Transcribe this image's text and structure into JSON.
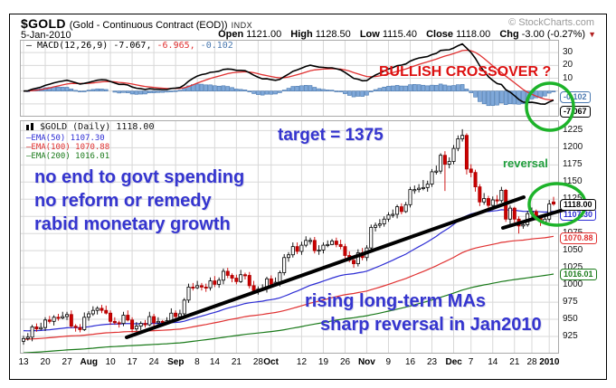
{
  "header": {
    "symbol": "$GOLD",
    "description": "(Gold - Continuous Contract (EOD))",
    "exchange": "INDX",
    "credit": "© StockCharts.com",
    "date": "5-Jan-2010",
    "ohlc": [
      {
        "label": "Open",
        "value": "1121.00"
      },
      {
        "label": "High",
        "value": "1128.50"
      },
      {
        "label": "Low",
        "value": "1115.40"
      },
      {
        "label": "Close",
        "value": "1118.00"
      },
      {
        "label": "Chg",
        "value": "-3.00 (-0.27%)"
      }
    ],
    "chg_down_icon": "▼"
  },
  "macd_panel": {
    "legend_macd": "— MACD(12,26,9) -7.067,",
    "legend_signal": " -6.965,",
    "legend_hist": " -0.102"
  },
  "price_panel": {
    "legend_title": "$GOLD (Daily) 1118.00"
  },
  "annotations": {
    "bullish_crossover": "BULLISH CROSSOVER ?",
    "target": "target = 1375",
    "commentary": [
      "no end to govt spending",
      "no reform or remedy",
      "rabid monetary growth"
    ],
    "reversal": "reversal",
    "rising_mas": "rising long-term MAs",
    "sharp_reversal": "sharp reversal in Jan2010"
  },
  "colors": {
    "candle_up": "#ffffff",
    "candle_up_line": "#000000",
    "candle_down": "#cc0000",
    "candle_down_line": "#aa0000",
    "ema50": "#2d2dd4",
    "ema100": "#e03131",
    "ema200": "#1a7a1a",
    "macd_line": "#000000",
    "macd_signal": "#e03131",
    "hist_fill": "#7fa8d9",
    "hist_line": "#4a79b0",
    "grid": "#d8d8d8",
    "panel_border": "#aaaaaa",
    "annotation_blue": "#3535cf",
    "annotation_red": "#dd1111",
    "annotation_green": "#1f9e3c",
    "circle_green": "#1db32a",
    "trendline": "#000000"
  },
  "chart_data": {
    "type": "candlestick+macd",
    "title": "$GOLD Gold - Continuous Contract (EOD) INDX, daily, 13-Jul-2009 to 5-Jan-2010",
    "x_ticks": [
      [
        0,
        "13",
        0
      ],
      [
        5,
        "20",
        0
      ],
      [
        10,
        "27",
        0
      ],
      [
        15,
        "Aug",
        1
      ],
      [
        20,
        "10",
        0
      ],
      [
        25,
        "17",
        0
      ],
      [
        30,
        "24",
        0
      ],
      [
        35,
        "Sep",
        1
      ],
      [
        40,
        "8",
        0
      ],
      [
        44,
        "14",
        0
      ],
      [
        49,
        "21",
        0
      ],
      [
        54,
        "28",
        0
      ],
      [
        57,
        "Oct",
        1
      ],
      [
        64,
        "12",
        0
      ],
      [
        69,
        "19",
        0
      ],
      [
        74,
        "26",
        0
      ],
      [
        79,
        "Nov",
        1
      ],
      [
        84,
        "9",
        0
      ],
      [
        89,
        "16",
        0
      ],
      [
        94,
        "23",
        0
      ],
      [
        99,
        "Dec",
        1
      ],
      [
        103,
        "7",
        0
      ],
      [
        108,
        "14",
        0
      ],
      [
        113,
        "21",
        0
      ],
      [
        117,
        "28",
        0
      ],
      [
        121,
        "2010",
        1
      ]
    ],
    "price": {
      "ylim": [
        900,
        1240
      ],
      "y_ticks": [
        1225,
        1200,
        1175,
        1150,
        1125,
        1100,
        1075,
        1050,
        1025,
        1000,
        975,
        950,
        925
      ],
      "grid": true,
      "ohlc": [
        [
          918,
          926,
          913,
          922
        ],
        [
          922,
          930,
          919,
          924
        ],
        [
          924,
          942,
          918,
          939
        ],
        [
          939,
          944,
          932,
          936
        ],
        [
          936,
          945,
          934,
          938
        ],
        [
          938,
          953,
          933,
          949
        ],
        [
          949,
          955,
          944,
          947
        ],
        [
          947,
          956,
          941,
          953
        ],
        [
          953,
          958,
          948,
          952
        ],
        [
          952,
          961,
          950,
          954
        ],
        [
          954,
          961,
          949,
          957
        ],
        [
          957,
          963,
          937,
          940
        ],
        [
          940,
          943,
          932,
          938
        ],
        [
          938,
          943,
          931,
          935
        ],
        [
          935,
          960,
          933,
          953
        ],
        [
          953,
          962,
          948,
          958
        ],
        [
          958,
          969,
          955,
          963
        ],
        [
          963,
          969,
          957,
          966
        ],
        [
          966,
          971,
          959,
          963
        ],
        [
          963,
          970,
          957,
          959
        ],
        [
          959,
          963,
          942,
          947
        ],
        [
          947,
          953,
          942,
          945
        ],
        [
          945,
          948,
          938,
          944
        ],
        [
          944,
          961,
          940,
          956
        ],
        [
          956,
          963,
          947,
          949
        ],
        [
          949,
          953,
          931,
          936
        ],
        [
          936,
          946,
          933,
          940
        ],
        [
          940,
          947,
          934,
          944
        ],
        [
          944,
          949,
          938,
          942
        ],
        [
          942,
          961,
          940,
          954
        ],
        [
          954,
          958,
          940,
          945
        ],
        [
          945,
          953,
          942,
          947
        ],
        [
          947,
          949,
          940,
          946
        ],
        [
          946,
          953,
          944,
          948
        ],
        [
          948,
          966,
          946,
          959
        ],
        [
          959,
          963,
          949,
          954
        ],
        [
          954,
          964,
          951,
          958
        ],
        [
          958,
          981,
          952,
          978
        ],
        [
          978,
          1002,
          974,
          997
        ],
        [
          997,
          1003,
          992,
          996
        ],
        [
          996,
          1006,
          994,
          999
        ],
        [
          999,
          1003,
          992,
          997
        ],
        [
          997,
          1002,
          990,
          996
        ],
        [
          996,
          1011,
          992,
          1006
        ],
        [
          1006,
          1013,
          997,
          1001
        ],
        [
          1001,
          1011,
          996,
          1007
        ],
        [
          1007,
          1024,
          1001,
          1020
        ],
        [
          1020,
          1025,
          1010,
          1014
        ],
        [
          1014,
          1017,
          1004,
          1010
        ],
        [
          1010,
          1015,
          1001,
          1005
        ],
        [
          1005,
          1022,
          1003,
          1015
        ],
        [
          1015,
          1018,
          1008,
          1014
        ],
        [
          1014,
          1019,
          995,
          999
        ],
        [
          999,
          1006,
          990,
          992
        ],
        [
          992,
          998,
          986,
          994
        ],
        [
          994,
          1001,
          991,
          995
        ],
        [
          995,
          1012,
          989,
          1009
        ],
        [
          1009,
          1014,
          997,
          1001
        ],
        [
          1001,
          1011,
          999,
          1004
        ],
        [
          1004,
          1021,
          998,
          1018
        ],
        [
          1018,
          1045,
          1014,
          1040
        ],
        [
          1040,
          1048,
          1034,
          1044
        ],
        [
          1044,
          1062,
          1040,
          1056
        ],
        [
          1056,
          1062,
          1045,
          1049
        ],
        [
          1049,
          1063,
          1044,
          1058
        ],
        [
          1058,
          1071,
          1055,
          1065
        ],
        [
          1065,
          1069,
          1059,
          1065
        ],
        [
          1065,
          1070,
          1046,
          1050
        ],
        [
          1050,
          1058,
          1044,
          1051
        ],
        [
          1051,
          1062,
          1046,
          1058
        ],
        [
          1058,
          1065,
          1055,
          1059
        ],
        [
          1059,
          1067,
          1058,
          1064
        ],
        [
          1064,
          1069,
          1055,
          1059
        ],
        [
          1059,
          1066,
          1052,
          1056
        ],
        [
          1056,
          1060,
          1039,
          1043
        ],
        [
          1043,
          1049,
          1033,
          1036
        ],
        [
          1036,
          1039,
          1025,
          1031
        ],
        [
          1031,
          1052,
          1027,
          1047
        ],
        [
          1047,
          1054,
          1036,
          1040
        ],
        [
          1040,
          1058,
          1035,
          1054
        ],
        [
          1054,
          1088,
          1050,
          1084
        ],
        [
          1084,
          1091,
          1078,
          1087
        ],
        [
          1087,
          1096,
          1083,
          1089
        ],
        [
          1089,
          1100,
          1085,
          1096
        ],
        [
          1096,
          1106,
          1092,
          1102
        ],
        [
          1102,
          1110,
          1098,
          1103
        ],
        [
          1103,
          1117,
          1097,
          1114
        ],
        [
          1114,
          1119,
          1103,
          1107
        ],
        [
          1107,
          1121,
          1105,
          1117
        ],
        [
          1117,
          1143,
          1113,
          1139
        ],
        [
          1139,
          1145,
          1133,
          1139
        ],
        [
          1139,
          1147,
          1135,
          1141
        ],
        [
          1141,
          1153,
          1138,
          1142
        ],
        [
          1142,
          1152,
          1136,
          1147
        ],
        [
          1147,
          1169,
          1143,
          1165
        ],
        [
          1165,
          1174,
          1161,
          1166
        ],
        [
          1166,
          1192,
          1162,
          1189
        ],
        [
          1189,
          1195,
          1137,
          1176
        ],
        [
          1176,
          1186,
          1170,
          1180
        ],
        [
          1180,
          1204,
          1176,
          1199
        ],
        [
          1199,
          1218,
          1195,
          1213
        ],
        [
          1213,
          1227,
          1209,
          1218
        ],
        [
          1218,
          1221,
          1161,
          1169
        ],
        [
          1169,
          1176,
          1157,
          1164
        ],
        [
          1164,
          1168,
          1136,
          1143
        ],
        [
          1143,
          1147,
          1115,
          1121
        ],
        [
          1121,
          1134,
          1117,
          1126
        ],
        [
          1126,
          1130,
          1110,
          1116
        ],
        [
          1116,
          1129,
          1109,
          1124
        ],
        [
          1124,
          1131,
          1118,
          1123
        ],
        [
          1123,
          1143,
          1120,
          1138
        ],
        [
          1138,
          1140,
          1092,
          1096
        ],
        [
          1096,
          1116,
          1088,
          1112
        ],
        [
          1112,
          1114,
          1091,
          1096
        ],
        [
          1096,
          1100,
          1075,
          1086
        ],
        [
          1086,
          1094,
          1082,
          1088
        ],
        [
          1088,
          1108,
          1085,
          1104
        ],
        [
          1104,
          1113,
          1098,
          1107
        ],
        [
          1107,
          1110,
          1094,
          1098
        ],
        [
          1098,
          1102,
          1086,
          1092
        ],
        [
          1092,
          1100,
          1088,
          1096
        ],
        [
          1096,
          1124,
          1092,
          1118
        ],
        [
          1121,
          1128.5,
          1115.4,
          1118
        ]
      ],
      "emas": [
        {
          "label": "EMA(50) 1107.30",
          "period": 50,
          "seed": 934,
          "end": 1107.3,
          "color": "#2d2dd4"
        },
        {
          "label": "EMA(100) 1070.88",
          "period": 100,
          "seed": 921,
          "end": 1070.88,
          "color": "#e03131"
        },
        {
          "label": "EMA(200) 1016.01",
          "period": 200,
          "seed": 901,
          "end": 1016.01,
          "color": "#1a7a1a"
        }
      ],
      "value_labels": [
        {
          "text": "1118.00",
          "value": 1118,
          "color": "#000000",
          "bold": true,
          "dy": 0,
          "z": 5
        },
        {
          "text": "1107.30",
          "value": 1107.3,
          "color": "#2d2dd4",
          "bold": false,
          "dy": 3,
          "z": 4
        },
        {
          "text": "1070.88",
          "value": 1070.88,
          "color": "#e03131",
          "bold": false,
          "dy": 2,
          "z": 4
        },
        {
          "text": "1016.01",
          "value": 1016.01,
          "color": "#1a7a1a",
          "bold": false,
          "dy": 0,
          "z": 4
        }
      ]
    },
    "macd": {
      "params": [
        12,
        26,
        9
      ],
      "ylim": [
        -20,
        40
      ],
      "y_ticks": [
        30,
        20,
        10
      ],
      "last": {
        "macd": -7.067,
        "signal": -6.965,
        "hist": -0.102
      },
      "value_labels": [
        {
          "text": "-0.102",
          "value": -0.102,
          "color": "#4a79b0",
          "bold": true,
          "dy": 6,
          "z": 4
        },
        {
          "text": "-7.067",
          "value": -7.067,
          "color": "#000000",
          "bold": true,
          "dy": 12,
          "z": 4
        }
      ]
    }
  }
}
